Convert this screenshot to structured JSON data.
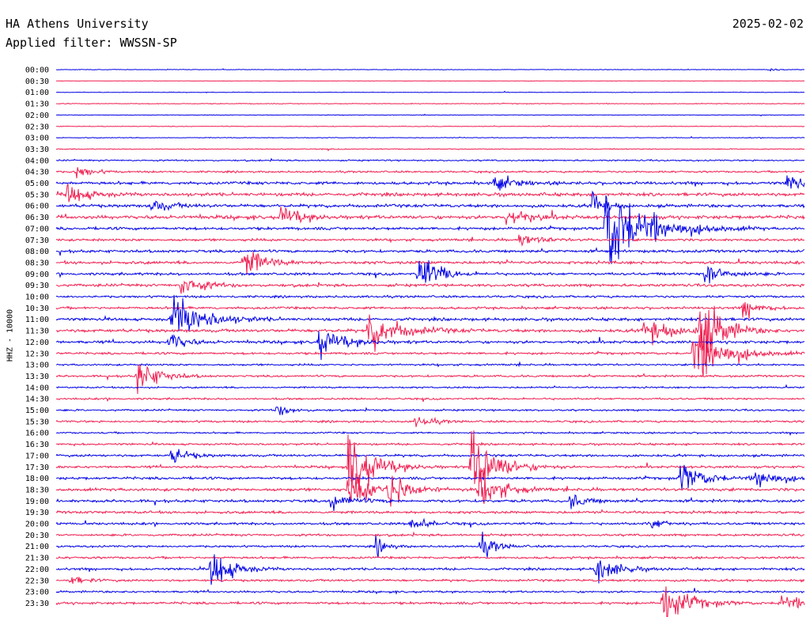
{
  "header": {
    "station": "HA Athens University",
    "filter": "Applied filter: WWSSN-SP",
    "date": "2025-02-02"
  },
  "y_axis_label": "HHZ - 10000",
  "colors": {
    "blue": "#0000e6",
    "red": "#f01e50"
  },
  "chart_data": {
    "type": "line",
    "title": "HA Athens University",
    "subtitle": "Applied filter: WWSSN-SP",
    "date": "2025-02-02",
    "channel_label": "HHZ - 10000",
    "grid": false,
    "line_labels": [
      "00:00",
      "00:30",
      "01:00",
      "01:30",
      "02:00",
      "02:30",
      "03:00",
      "03:30",
      "04:00",
      "04:30",
      "05:00",
      "05:30",
      "06:00",
      "06:30",
      "07:00",
      "07:30",
      "08:00",
      "08:30",
      "09:00",
      "09:30",
      "10:00",
      "10:30",
      "11:00",
      "11:30",
      "12:00",
      "12:30",
      "13:00",
      "13:30",
      "14:00",
      "14:30",
      "15:00",
      "15:30",
      "16:00",
      "16:30",
      "17:00",
      "17:30",
      "18:00",
      "18:30",
      "19:00",
      "19:30",
      "20:00",
      "20:30",
      "21:00",
      "21:30",
      "22:00",
      "22:30",
      "23:00",
      "23:30"
    ],
    "line_colors": [
      "blue",
      "red"
    ],
    "noise_levels": [
      0.3,
      0.2,
      0.3,
      0.4,
      0.3,
      0.4,
      0.4,
      0.5,
      0.8,
      1.0,
      1.6,
      1.8,
      1.7,
      1.9,
      1.5,
      1.3,
      1.5,
      1.6,
      1.4,
      1.5,
      1.2,
      1.3,
      1.6,
      1.7,
      1.5,
      1.2,
      1.0,
      1.1,
      0.9,
      1.0,
      1.0,
      1.1,
      0.9,
      1.1,
      1.3,
      1.3,
      1.4,
      1.6,
      1.5,
      1.4,
      1.3,
      1.2,
      1.1,
      1.2,
      1.3,
      1.2,
      1.1,
      1.3
    ],
    "events": [
      {
        "line": "00:00",
        "minute": 28.5,
        "amplitude": 2,
        "duration": 1.5
      },
      {
        "line": "04:30",
        "minute": 0.8,
        "amplitude": 8,
        "duration": 1.5
      },
      {
        "line": "05:00",
        "minute": 17.5,
        "amplitude": 10,
        "duration": 2
      },
      {
        "line": "05:00",
        "minute": 29.3,
        "amplitude": 14,
        "duration": 1.5
      },
      {
        "line": "05:30",
        "minute": 0.4,
        "amplitude": 14,
        "duration": 2
      },
      {
        "line": "06:00",
        "minute": 3.8,
        "amplitude": 8,
        "duration": 2
      },
      {
        "line": "06:00",
        "minute": 21.5,
        "amplitude": 30,
        "duration": 1
      },
      {
        "line": "06:30",
        "minute": 9.0,
        "amplitude": 14,
        "duration": 2
      },
      {
        "line": "06:30",
        "minute": 18.0,
        "amplitude": 14,
        "duration": 2
      },
      {
        "line": "07:00",
        "minute": 22.0,
        "amplitude": 60,
        "duration": 4
      },
      {
        "line": "07:30",
        "minute": 18.5,
        "amplitude": 8,
        "duration": 2
      },
      {
        "line": "08:30",
        "minute": 7.5,
        "amplitude": 20,
        "duration": 2
      },
      {
        "line": "09:00",
        "minute": 14.5,
        "amplitude": 26,
        "duration": 2
      },
      {
        "line": "09:00",
        "minute": 26.0,
        "amplitude": 16,
        "duration": 2
      },
      {
        "line": "09:30",
        "minute": 5.0,
        "amplitude": 14,
        "duration": 2
      },
      {
        "line": "10:30",
        "minute": 27.5,
        "amplitude": 14,
        "duration": 1.5
      },
      {
        "line": "11:00",
        "minute": 4.6,
        "amplitude": 32,
        "duration": 3
      },
      {
        "line": "11:30",
        "minute": 12.5,
        "amplitude": 24,
        "duration": 3
      },
      {
        "line": "11:30",
        "minute": 23.5,
        "amplitude": 16,
        "duration": 3
      },
      {
        "line": "11:30",
        "minute": 25.8,
        "amplitude": 50,
        "duration": 2
      },
      {
        "line": "12:00",
        "minute": 10.5,
        "amplitude": 18,
        "duration": 2.5
      },
      {
        "line": "12:00",
        "minute": 4.5,
        "amplitude": 14,
        "duration": 1.5
      },
      {
        "line": "12:30",
        "minute": 25.5,
        "amplitude": 40,
        "duration": 3
      },
      {
        "line": "13:30",
        "minute": 3.2,
        "amplitude": 24,
        "duration": 2
      },
      {
        "line": "15:00",
        "minute": 8.8,
        "amplitude": 8,
        "duration": 1.5
      },
      {
        "line": "15:30",
        "minute": 14.4,
        "amplitude": 8,
        "duration": 1.5
      },
      {
        "line": "17:00",
        "minute": 4.6,
        "amplitude": 12,
        "duration": 1.5
      },
      {
        "line": "17:30",
        "minute": 11.7,
        "amplitude": 44,
        "duration": 2.5
      },
      {
        "line": "17:30",
        "minute": 16.6,
        "amplitude": 46,
        "duration": 2.5
      },
      {
        "line": "18:00",
        "minute": 25.0,
        "amplitude": 18,
        "duration": 2.5
      },
      {
        "line": "18:00",
        "minute": 28.0,
        "amplitude": 16,
        "duration": 2
      },
      {
        "line": "18:30",
        "minute": 11.7,
        "amplitude": 28,
        "duration": 2
      },
      {
        "line": "18:30",
        "minute": 13.3,
        "amplitude": 26,
        "duration": 2
      },
      {
        "line": "18:30",
        "minute": 16.9,
        "amplitude": 30,
        "duration": 2
      },
      {
        "line": "19:00",
        "minute": 11.0,
        "amplitude": 12,
        "duration": 2
      },
      {
        "line": "19:00",
        "minute": 20.6,
        "amplitude": 10,
        "duration": 1.5
      },
      {
        "line": "20:00",
        "minute": 14.2,
        "amplitude": 10,
        "duration": 1.5
      },
      {
        "line": "20:00",
        "minute": 23.8,
        "amplitude": 8,
        "duration": 1.5
      },
      {
        "line": "21:00",
        "minute": 12.8,
        "amplitude": 12,
        "duration": 1
      },
      {
        "line": "21:00",
        "minute": 17.0,
        "amplitude": 14,
        "duration": 1.5
      },
      {
        "line": "22:00",
        "minute": 6.2,
        "amplitude": 28,
        "duration": 2
      },
      {
        "line": "22:00",
        "minute": 21.6,
        "amplitude": 18,
        "duration": 2
      },
      {
        "line": "22:30",
        "minute": 0.5,
        "amplitude": 6,
        "duration": 1.5
      },
      {
        "line": "23:30",
        "minute": 24.3,
        "amplitude": 28,
        "duration": 2.5
      },
      {
        "line": "23:30",
        "minute": 29.0,
        "amplitude": 12,
        "duration": 2
      }
    ]
  }
}
